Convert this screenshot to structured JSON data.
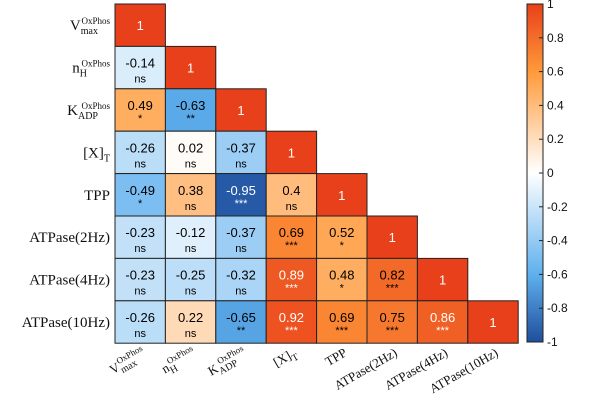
{
  "chart_data": {
    "type": "heatmap",
    "layout": "lower-triangle correlation matrix",
    "variables": [
      {
        "main": "V",
        "sub": "max",
        "sup": "OxPhos"
      },
      {
        "main": "n",
        "sub": "H",
        "sup": "OxPhos"
      },
      {
        "main": "K",
        "sub": "ADP",
        "sup": "OxPhos"
      },
      {
        "main": "[X]",
        "sub": "T",
        "sup": ""
      },
      {
        "main": "TPP",
        "sub": "",
        "sup": ""
      },
      {
        "main": "ATPase(2Hz)",
        "sub": "",
        "sup": ""
      },
      {
        "main": "ATPase(4Hz)",
        "sub": "",
        "sup": ""
      },
      {
        "main": "ATPase(10Hz)",
        "sub": "",
        "sup": ""
      }
    ],
    "matrix": [
      [
        1
      ],
      [
        -0.14,
        1
      ],
      [
        0.49,
        -0.63,
        1
      ],
      [
        -0.26,
        0.02,
        -0.37,
        1
      ],
      [
        -0.49,
        0.38,
        -0.95,
        0.4,
        1
      ],
      [
        -0.23,
        -0.12,
        -0.37,
        0.69,
        0.52,
        1
      ],
      [
        -0.23,
        -0.25,
        -0.32,
        0.89,
        0.48,
        0.82,
        1
      ],
      [
        -0.26,
        0.22,
        -0.65,
        0.92,
        0.69,
        0.75,
        0.86,
        1
      ]
    ],
    "value_labels": [
      [
        "1"
      ],
      [
        "-0.14",
        "1"
      ],
      [
        "0.49",
        "-0.63",
        "1"
      ],
      [
        "-0.26",
        "0.02",
        "-0.37",
        "1"
      ],
      [
        "-0.49",
        "0.38",
        "-0.95",
        "0.4",
        "1"
      ],
      [
        "-0.23",
        "-0.12",
        "-0.37",
        "0.69",
        "0.52",
        "1"
      ],
      [
        "-0.23",
        "-0.25",
        "-0.32",
        "0.89",
        "0.48",
        "0.82",
        "1"
      ],
      [
        "-0.26",
        "0.22",
        "-0.65",
        "0.92",
        "0.69",
        "0.75",
        "0.86",
        "1"
      ]
    ],
    "significance": [
      [
        ""
      ],
      [
        "ns",
        ""
      ],
      [
        "*",
        "**",
        ""
      ],
      [
        "ns",
        "ns",
        "ns",
        ""
      ],
      [
        "*",
        "ns",
        "***",
        "ns",
        ""
      ],
      [
        "ns",
        "ns",
        "ns",
        "***",
        "*",
        ""
      ],
      [
        "ns",
        "ns",
        "ns",
        "***",
        "*",
        "***",
        ""
      ],
      [
        "ns",
        "ns",
        "**",
        "***",
        "***",
        "***",
        "***",
        ""
      ]
    ],
    "colorbar": {
      "range": [
        -1,
        1
      ],
      "ticks": [
        1,
        0.8,
        0.6,
        0.4,
        0.2,
        0,
        -0.2,
        -0.4,
        -0.6,
        -0.8,
        -1
      ],
      "tick_labels": [
        "1",
        "0.8",
        "0.6",
        "0.4",
        "0.2",
        "0",
        "-0.2",
        "-0.4",
        "-0.6",
        "-0.8",
        "-1"
      ],
      "colors": {
        "neg_end": "#1f4e9c",
        "neg_mid": "#5fb0ee",
        "zero": "#ffffff",
        "pos_mid": "#ff9a3a",
        "pos_end": "#e8401a"
      }
    }
  }
}
